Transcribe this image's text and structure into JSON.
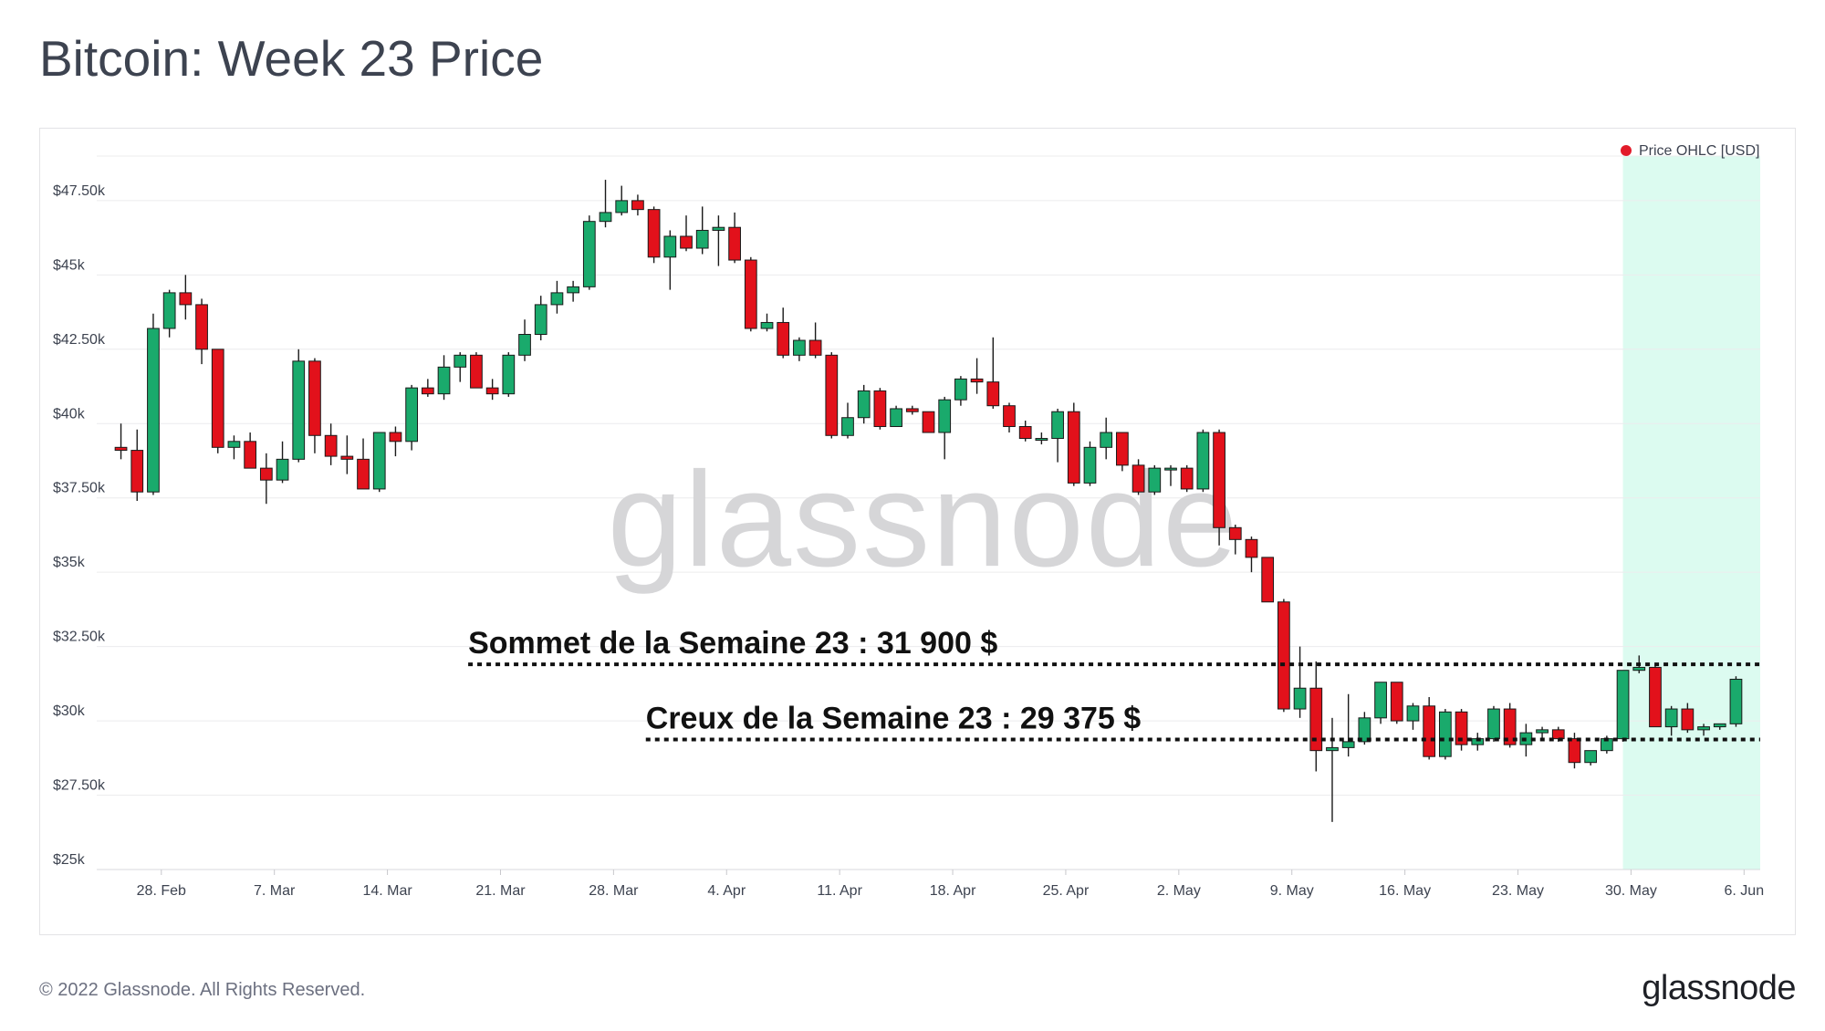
{
  "page": {
    "title": "Bitcoin: Week 23 Price",
    "copyright": "© 2022 Glassnode. All Rights Reserved.",
    "logo_text": "glassnode",
    "watermark": "glassnode"
  },
  "colors": {
    "up": "#1aaa6c",
    "down": "#e2111b",
    "highlight": "#dcfbf0",
    "annotation_line": "#111111"
  },
  "chart_data": {
    "type": "candlestick",
    "title": "Bitcoin: Week 23 Price",
    "legend": {
      "label": "Price OHLC [USD]",
      "color": "#e21b2a",
      "position": "top-right"
    },
    "grid": true,
    "ylim": [
      25000,
      49000
    ],
    "yticks": [
      {
        "value": 25000,
        "label": "$25k"
      },
      {
        "value": 27500,
        "label": "$27.50k"
      },
      {
        "value": 30000,
        "label": "$30k"
      },
      {
        "value": 32500,
        "label": "$32.50k"
      },
      {
        "value": 35000,
        "label": "$35k"
      },
      {
        "value": 37500,
        "label": "$37.50k"
      },
      {
        "value": 40000,
        "label": "$40k"
      },
      {
        "value": 42500,
        "label": "$42.50k"
      },
      {
        "value": 45000,
        "label": "$45k"
      },
      {
        "value": 47500,
        "label": "$47.50k"
      }
    ],
    "xlim": [
      "2022-02-24",
      "2022-06-07"
    ],
    "xticks": [
      {
        "date": "2022-02-28",
        "label": "28. Feb"
      },
      {
        "date": "2022-03-07",
        "label": "7. Mar"
      },
      {
        "date": "2022-03-14",
        "label": "14. Mar"
      },
      {
        "date": "2022-03-21",
        "label": "21. Mar"
      },
      {
        "date": "2022-03-28",
        "label": "28. Mar"
      },
      {
        "date": "2022-04-04",
        "label": "4. Apr"
      },
      {
        "date": "2022-04-11",
        "label": "11. Apr"
      },
      {
        "date": "2022-04-18",
        "label": "18. Apr"
      },
      {
        "date": "2022-04-25",
        "label": "25. Apr"
      },
      {
        "date": "2022-05-02",
        "label": "2. May"
      },
      {
        "date": "2022-05-09",
        "label": "9. May"
      },
      {
        "date": "2022-05-16",
        "label": "16. May"
      },
      {
        "date": "2022-05-23",
        "label": "23. May"
      },
      {
        "date": "2022-05-30",
        "label": "30. May"
      },
      {
        "date": "2022-06-06",
        "label": "6. Jun"
      }
    ],
    "highlight_range": [
      "2022-05-30",
      "2022-06-06"
    ],
    "series": [
      {
        "name": "Price OHLC [USD]",
        "ohlc": [
          {
            "date": "2022-02-25",
            "o": 39200,
            "h": 40000,
            "l": 38800,
            "c": 39100
          },
          {
            "date": "2022-02-26",
            "o": 39100,
            "h": 39800,
            "l": 37400,
            "c": 37700
          },
          {
            "date": "2022-02-27",
            "o": 37700,
            "h": 43700,
            "l": 37600,
            "c": 43200
          },
          {
            "date": "2022-02-28",
            "o": 43200,
            "h": 44500,
            "l": 42900,
            "c": 44400
          },
          {
            "date": "2022-03-01",
            "o": 44400,
            "h": 45000,
            "l": 43500,
            "c": 44000
          },
          {
            "date": "2022-03-02",
            "o": 44000,
            "h": 44200,
            "l": 42000,
            "c": 42500
          },
          {
            "date": "2022-03-03",
            "o": 42500,
            "h": 42500,
            "l": 39000,
            "c": 39200
          },
          {
            "date": "2022-03-04",
            "o": 39200,
            "h": 39600,
            "l": 38800,
            "c": 39400
          },
          {
            "date": "2022-03-05",
            "o": 39400,
            "h": 39700,
            "l": 38500,
            "c": 38500
          },
          {
            "date": "2022-03-06",
            "o": 38500,
            "h": 39000,
            "l": 37300,
            "c": 38100
          },
          {
            "date": "2022-03-07",
            "o": 38100,
            "h": 39400,
            "l": 38000,
            "c": 38800
          },
          {
            "date": "2022-03-08",
            "o": 38800,
            "h": 42500,
            "l": 38700,
            "c": 42100
          },
          {
            "date": "2022-03-09",
            "o": 42100,
            "h": 42200,
            "l": 39000,
            "c": 39600
          },
          {
            "date": "2022-03-10",
            "o": 39600,
            "h": 40000,
            "l": 38600,
            "c": 38900
          },
          {
            "date": "2022-03-11",
            "o": 38900,
            "h": 39600,
            "l": 38300,
            "c": 38800
          },
          {
            "date": "2022-03-12",
            "o": 38800,
            "h": 39500,
            "l": 37800,
            "c": 37800
          },
          {
            "date": "2022-03-13",
            "o": 37800,
            "h": 39700,
            "l": 37700,
            "c": 39700
          },
          {
            "date": "2022-03-14",
            "o": 39700,
            "h": 39900,
            "l": 38900,
            "c": 39400
          },
          {
            "date": "2022-03-15",
            "o": 39400,
            "h": 41300,
            "l": 39100,
            "c": 41200
          },
          {
            "date": "2022-03-16",
            "o": 41200,
            "h": 41500,
            "l": 40900,
            "c": 41000
          },
          {
            "date": "2022-03-17",
            "o": 41000,
            "h": 42300,
            "l": 40800,
            "c": 41900
          },
          {
            "date": "2022-03-18",
            "o": 41900,
            "h": 42400,
            "l": 41400,
            "c": 42300
          },
          {
            "date": "2022-03-19",
            "o": 42300,
            "h": 42400,
            "l": 41200,
            "c": 41200
          },
          {
            "date": "2022-03-20",
            "o": 41200,
            "h": 41500,
            "l": 40800,
            "c": 41000
          },
          {
            "date": "2022-03-21",
            "o": 41000,
            "h": 42400,
            "l": 40900,
            "c": 42300
          },
          {
            "date": "2022-03-22",
            "o": 42300,
            "h": 43500,
            "l": 42100,
            "c": 43000
          },
          {
            "date": "2022-03-23",
            "o": 43000,
            "h": 44300,
            "l": 42800,
            "c": 44000
          },
          {
            "date": "2022-03-24",
            "o": 44000,
            "h": 44800,
            "l": 43700,
            "c": 44400
          },
          {
            "date": "2022-03-25",
            "o": 44400,
            "h": 44800,
            "l": 44100,
            "c": 44600
          },
          {
            "date": "2022-03-26",
            "o": 44600,
            "h": 47000,
            "l": 44500,
            "c": 46800
          },
          {
            "date": "2022-03-27",
            "o": 46800,
            "h": 48200,
            "l": 46600,
            "c": 47100
          },
          {
            "date": "2022-03-28",
            "o": 47100,
            "h": 48000,
            "l": 47000,
            "c": 47500
          },
          {
            "date": "2022-03-29",
            "o": 47500,
            "h": 47700,
            "l": 47000,
            "c": 47200
          },
          {
            "date": "2022-03-30",
            "o": 47200,
            "h": 47300,
            "l": 45400,
            "c": 45600
          },
          {
            "date": "2022-03-31",
            "o": 45600,
            "h": 46500,
            "l": 44500,
            "c": 46300
          },
          {
            "date": "2022-04-01",
            "o": 46300,
            "h": 47000,
            "l": 45800,
            "c": 45900
          },
          {
            "date": "2022-04-02",
            "o": 45900,
            "h": 47300,
            "l": 45700,
            "c": 46500
          },
          {
            "date": "2022-04-03",
            "o": 46500,
            "h": 47000,
            "l": 45300,
            "c": 46600
          },
          {
            "date": "2022-04-04",
            "o": 46600,
            "h": 47100,
            "l": 45400,
            "c": 45500
          },
          {
            "date": "2022-04-05",
            "o": 45500,
            "h": 45600,
            "l": 43100,
            "c": 43200
          },
          {
            "date": "2022-04-06",
            "o": 43200,
            "h": 43700,
            "l": 43100,
            "c": 43400
          },
          {
            "date": "2022-04-07",
            "o": 43400,
            "h": 43900,
            "l": 42200,
            "c": 42300
          },
          {
            "date": "2022-04-08",
            "o": 42300,
            "h": 42900,
            "l": 42100,
            "c": 42800
          },
          {
            "date": "2022-04-09",
            "o": 42800,
            "h": 43400,
            "l": 42200,
            "c": 42300
          },
          {
            "date": "2022-04-10",
            "o": 42300,
            "h": 42400,
            "l": 39500,
            "c": 39600
          },
          {
            "date": "2022-04-11",
            "o": 39600,
            "h": 40700,
            "l": 39500,
            "c": 40200
          },
          {
            "date": "2022-04-12",
            "o": 40200,
            "h": 41300,
            "l": 40000,
            "c": 41100
          },
          {
            "date": "2022-04-13",
            "o": 41100,
            "h": 41200,
            "l": 39800,
            "c": 39900
          },
          {
            "date": "2022-04-14",
            "o": 39900,
            "h": 40600,
            "l": 39900,
            "c": 40500
          },
          {
            "date": "2022-04-15",
            "o": 40500,
            "h": 40600,
            "l": 40300,
            "c": 40400
          },
          {
            "date": "2022-04-16",
            "o": 40400,
            "h": 40400,
            "l": 39700,
            "c": 39700
          },
          {
            "date": "2022-04-17",
            "o": 39700,
            "h": 40900,
            "l": 38800,
            "c": 40800
          },
          {
            "date": "2022-04-18",
            "o": 40800,
            "h": 41600,
            "l": 40600,
            "c": 41500
          },
          {
            "date": "2022-04-19",
            "o": 41500,
            "h": 42200,
            "l": 41000,
            "c": 41400
          },
          {
            "date": "2022-04-20",
            "o": 41400,
            "h": 42900,
            "l": 40500,
            "c": 40600
          },
          {
            "date": "2022-04-21",
            "o": 40600,
            "h": 40700,
            "l": 39700,
            "c": 39900
          },
          {
            "date": "2022-04-22",
            "o": 39900,
            "h": 40100,
            "l": 39400,
            "c": 39500
          },
          {
            "date": "2022-04-23",
            "o": 39500,
            "h": 39700,
            "l": 39300,
            "c": 39500
          },
          {
            "date": "2022-04-24",
            "o": 39500,
            "h": 40500,
            "l": 38700,
            "c": 40400
          },
          {
            "date": "2022-04-25",
            "o": 40400,
            "h": 40700,
            "l": 37900,
            "c": 38000
          },
          {
            "date": "2022-04-26",
            "o": 38000,
            "h": 39400,
            "l": 37900,
            "c": 39200
          },
          {
            "date": "2022-04-27",
            "o": 39200,
            "h": 40200,
            "l": 38800,
            "c": 39700
          },
          {
            "date": "2022-04-28",
            "o": 39700,
            "h": 39700,
            "l": 38400,
            "c": 38600
          },
          {
            "date": "2022-04-29",
            "o": 38600,
            "h": 38800,
            "l": 37600,
            "c": 37700
          },
          {
            "date": "2022-04-30",
            "o": 37700,
            "h": 38600,
            "l": 37600,
            "c": 38500
          },
          {
            "date": "2022-05-01",
            "o": 38500,
            "h": 38600,
            "l": 37900,
            "c": 38500
          },
          {
            "date": "2022-05-02",
            "o": 38500,
            "h": 38600,
            "l": 37700,
            "c": 37800
          },
          {
            "date": "2022-05-03",
            "o": 37800,
            "h": 39800,
            "l": 37700,
            "c": 39700
          },
          {
            "date": "2022-05-04",
            "o": 39700,
            "h": 39800,
            "l": 35900,
            "c": 36500
          },
          {
            "date": "2022-05-05",
            "o": 36500,
            "h": 36600,
            "l": 35600,
            "c": 36100
          },
          {
            "date": "2022-05-06",
            "o": 36100,
            "h": 36200,
            "l": 35000,
            "c": 35500
          },
          {
            "date": "2022-05-07",
            "o": 35500,
            "h": 35500,
            "l": 34000,
            "c": 34000
          },
          {
            "date": "2022-05-08",
            "o": 34000,
            "h": 34100,
            "l": 30300,
            "c": 30400
          },
          {
            "date": "2022-05-09",
            "o": 30400,
            "h": 32500,
            "l": 30100,
            "c": 31100
          },
          {
            "date": "2022-05-10",
            "o": 31100,
            "h": 32000,
            "l": 28300,
            "c": 29000
          },
          {
            "date": "2022-05-11",
            "o": 29000,
            "h": 30100,
            "l": 26600,
            "c": 29100
          },
          {
            "date": "2022-05-12",
            "o": 29100,
            "h": 30900,
            "l": 28800,
            "c": 29300
          },
          {
            "date": "2022-05-13",
            "o": 29300,
            "h": 30300,
            "l": 29200,
            "c": 30100
          },
          {
            "date": "2022-05-14",
            "o": 30100,
            "h": 31300,
            "l": 29900,
            "c": 31300
          },
          {
            "date": "2022-05-15",
            "o": 31300,
            "h": 31300,
            "l": 29900,
            "c": 30000
          },
          {
            "date": "2022-05-16",
            "o": 30000,
            "h": 30600,
            "l": 29700,
            "c": 30500
          },
          {
            "date": "2022-05-17",
            "o": 30500,
            "h": 30800,
            "l": 28700,
            "c": 28800
          },
          {
            "date": "2022-05-18",
            "o": 28800,
            "h": 30400,
            "l": 28700,
            "c": 30300
          },
          {
            "date": "2022-05-19",
            "o": 30300,
            "h": 30400,
            "l": 29000,
            "c": 29200
          },
          {
            "date": "2022-05-20",
            "o": 29200,
            "h": 29600,
            "l": 29000,
            "c": 29400
          },
          {
            "date": "2022-05-21",
            "o": 29400,
            "h": 30500,
            "l": 29300,
            "c": 30400
          },
          {
            "date": "2022-05-22",
            "o": 30400,
            "h": 30600,
            "l": 29100,
            "c": 29200
          },
          {
            "date": "2022-05-23",
            "o": 29200,
            "h": 29900,
            "l": 28800,
            "c": 29600
          },
          {
            "date": "2022-05-24",
            "o": 29600,
            "h": 29800,
            "l": 29400,
            "c": 29700
          },
          {
            "date": "2022-05-25",
            "o": 29700,
            "h": 29800,
            "l": 29300,
            "c": 29400
          },
          {
            "date": "2022-05-26",
            "o": 29400,
            "h": 29600,
            "l": 28400,
            "c": 28600
          },
          {
            "date": "2022-05-27",
            "o": 28600,
            "h": 29000,
            "l": 28500,
            "c": 29000
          },
          {
            "date": "2022-05-28",
            "o": 29000,
            "h": 29500,
            "l": 28900,
            "c": 29400
          },
          {
            "date": "2022-05-29",
            "o": 29400,
            "h": 31700,
            "l": 29300,
            "c": 31700
          },
          {
            "date": "2022-05-30",
            "o": 31700,
            "h": 32200,
            "l": 31600,
            "c": 31800
          },
          {
            "date": "2022-05-31",
            "o": 31800,
            "h": 31900,
            "l": 29800,
            "c": 29800
          },
          {
            "date": "2022-06-01",
            "o": 29800,
            "h": 30500,
            "l": 29500,
            "c": 30400
          },
          {
            "date": "2022-06-02",
            "o": 30400,
            "h": 30600,
            "l": 29600,
            "c": 29700
          },
          {
            "date": "2022-06-03",
            "o": 29700,
            "h": 29900,
            "l": 29500,
            "c": 29800
          },
          {
            "date": "2022-06-04",
            "o": 29800,
            "h": 29900,
            "l": 29700,
            "c": 29900
          },
          {
            "date": "2022-06-05",
            "o": 29900,
            "h": 31500,
            "l": 29800,
            "c": 31400
          }
        ]
      }
    ],
    "annotations": [
      {
        "label": "Sommet de la Semaine 23 : 31 900 $",
        "value": 31900,
        "from": "2022-03-19",
        "to": "2022-06-06"
      },
      {
        "label": "Creux de la Semaine 23 : 29 375 $",
        "value": 29375,
        "from": "2022-03-30",
        "to": "2022-06-06"
      }
    ]
  }
}
